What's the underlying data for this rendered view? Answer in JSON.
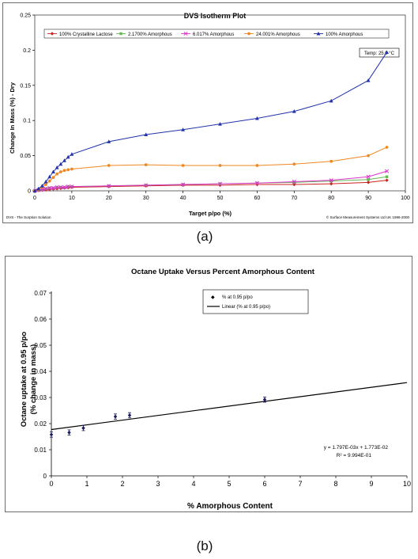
{
  "chart_data": [
    {
      "type": "line",
      "title": "DVS Isotherm Plot",
      "xlabel": "Target p/po (%)",
      "ylabel": "Change In Mass (%) - Dry",
      "xlim": [
        0,
        100
      ],
      "ylim": [
        0,
        0.25
      ],
      "xticks": [
        "0",
        "10",
        "20",
        "30",
        "40",
        "50",
        "60",
        "70",
        "80",
        "90",
        "100"
      ],
      "yticks": [
        "0",
        "0.05",
        "0.1",
        "0.15",
        "0.2",
        "0.25"
      ],
      "legend_position": "top",
      "annotation": "Temp: 25.0 °C",
      "footer_left": "DVS - The Sorption Solution",
      "footer_right": "© Surface Measurement Systems Ltd UK 1996-2000",
      "x": [
        0,
        1,
        2,
        3,
        4,
        5,
        6,
        7,
        8,
        9,
        10,
        20,
        30,
        40,
        50,
        60,
        70,
        80,
        90,
        95
      ],
      "series": [
        {
          "name": "100% Crystalline Lactose",
          "color": "#cc2222",
          "marker": "diamond",
          "values": [
            0,
            0.0005,
            0.001,
            0.0015,
            0.002,
            0.0025,
            0.003,
            0.0035,
            0.004,
            0.0045,
            0.005,
            0.006,
            0.007,
            0.008,
            0.008,
            0.009,
            0.009,
            0.01,
            0.012,
            0.015
          ]
        },
        {
          "name": "2.1700% Amorphous",
          "color": "#66bb55",
          "marker": "square",
          "values": [
            0,
            0.001,
            0.002,
            0.003,
            0.004,
            0.004,
            0.005,
            0.005,
            0.005,
            0.006,
            0.006,
            0.007,
            0.008,
            0.009,
            0.01,
            0.011,
            0.012,
            0.014,
            0.016,
            0.02
          ]
        },
        {
          "name": "6.017% Amorphous",
          "color": "#dd33cc",
          "marker": "x",
          "values": [
            0,
            0.001,
            0.002,
            0.003,
            0.004,
            0.004,
            0.005,
            0.005,
            0.005,
            0.006,
            0.006,
            0.007,
            0.008,
            0.009,
            0.01,
            0.011,
            0.013,
            0.015,
            0.02,
            0.028
          ]
        },
        {
          "name": "24.001% Amorphous",
          "color": "#ee8822",
          "marker": "circle",
          "values": [
            0,
            0.002,
            0.005,
            0.009,
            0.014,
            0.019,
            0.024,
            0.027,
            0.029,
            0.03,
            0.031,
            0.036,
            0.037,
            0.036,
            0.036,
            0.036,
            0.038,
            0.042,
            0.05,
            0.062
          ]
        },
        {
          "name": "100% Amorphous",
          "color": "#2233aa",
          "marker": "triangle",
          "values": [
            0,
            0.003,
            0.007,
            0.013,
            0.02,
            0.027,
            0.033,
            0.038,
            0.043,
            0.048,
            0.052,
            0.07,
            0.08,
            0.087,
            0.095,
            0.103,
            0.113,
            0.128,
            0.157,
            0.197
          ]
        }
      ]
    },
    {
      "type": "scatter",
      "title": "Octane Uptake Versus Percent Amorphous Content",
      "xlabel": "% Amorphous Content",
      "ylabel_line1": "Octane uptake at 0.95 p/po",
      "ylabel_line2": "(% change in mass)",
      "xlim": [
        0,
        10
      ],
      "ylim": [
        0,
        0.07
      ],
      "xticks": [
        "0",
        "1",
        "2",
        "3",
        "4",
        "5",
        "6",
        "7",
        "8",
        "9",
        "10"
      ],
      "yticks": [
        "0",
        "0.01",
        "0.02",
        "0.03",
        "0.04",
        "0.05",
        "0.06",
        "0.07"
      ],
      "legend_position": "top-center",
      "series": [
        {
          "name": "% at 0.95 p/po",
          "color": "#1a1a5e",
          "x": [
            0,
            0.5,
            0.9,
            1.8,
            2.2,
            6.0
          ],
          "y": [
            0.0158,
            0.0166,
            0.0183,
            0.0227,
            0.0232,
            0.0292
          ],
          "error": [
            0.001,
            0.001,
            0.001,
            0.001,
            0.001,
            0.001
          ]
        }
      ],
      "trendline": {
        "name": "Linear (% at 0.95 p/po)",
        "slope": 0.001797,
        "intercept": 0.01773
      },
      "equation_line1": "y = 1.797E-03x  + 1.773E-02",
      "equation_line2": "R² = 9.994E-01"
    }
  ],
  "captions": {
    "a": "(a)",
    "b": "(b)"
  }
}
